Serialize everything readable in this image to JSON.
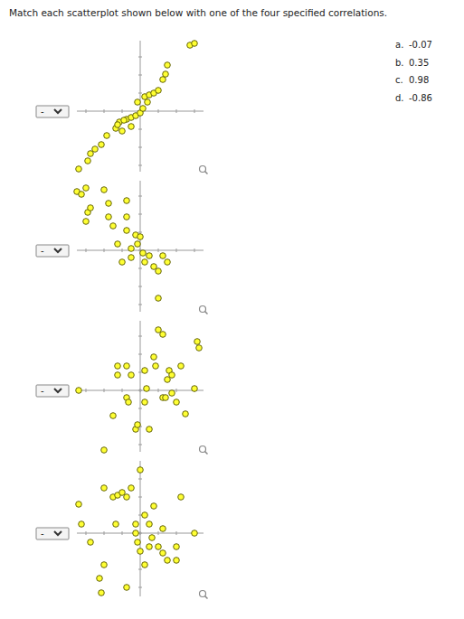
{
  "instruction": "Match each scatterplot shown below with one of the four specified correlations.",
  "select_placeholder": "-",
  "options": [
    {
      "letter": "a.",
      "value": -0.07
    },
    {
      "letter": "b.",
      "value": 0.35
    },
    {
      "letter": "c.",
      "value": 0.98
    },
    {
      "letter": "d.",
      "value": -0.86
    }
  ],
  "chart_data": [
    {
      "type": "scatter",
      "color": "#ffff33",
      "marker": "circle",
      "tick_labels": false,
      "grid": false,
      "xlim": [
        -70,
        70
      ],
      "ylim": [
        -67,
        78
      ],
      "xticks": [
        -60,
        -40,
        -20,
        0,
        20,
        40,
        60
      ],
      "yticks": [
        -60,
        -40,
        -20,
        0,
        20,
        40,
        60
      ],
      "x": [
        -68,
        -58,
        -55,
        -50,
        -43,
        -37,
        -27,
        -23,
        -20,
        -15,
        -10,
        -5,
        0,
        3,
        -3,
        5,
        10,
        15,
        20,
        25,
        28,
        30,
        55,
        60,
        -10,
        -25,
        -18,
        8
      ],
      "values": [
        -64,
        -55,
        -47,
        -42,
        -37,
        -27,
        -19,
        -12,
        -22,
        -9,
        -7,
        -5,
        -2,
        3,
        10,
        16,
        18,
        20,
        23,
        35,
        41,
        51,
        73,
        75,
        -17,
        -15,
        -10,
        10
      ]
    },
    {
      "type": "scatter",
      "color": "#ffff33",
      "marker": "circle",
      "tick_labels": false,
      "grid": false,
      "xlim": [
        -70,
        70
      ],
      "ylim": [
        -68,
        77
      ],
      "xticks": [
        -60,
        -40,
        -20,
        0,
        20,
        40,
        60
      ],
      "yticks": [
        -60,
        -40,
        -20,
        0,
        20,
        40,
        60
      ],
      "x": [
        -70,
        -65,
        -60,
        -58,
        -55,
        -60,
        -40,
        -35,
        -35,
        -30,
        -15,
        -15,
        -15,
        -25,
        -20,
        -10,
        -5,
        0,
        -3,
        3,
        5,
        10,
        15,
        20,
        25,
        30,
        20,
        -10
      ],
      "values": [
        65,
        62,
        69,
        42,
        47,
        32,
        67,
        52,
        37,
        27,
        55,
        37,
        22,
        7,
        -13,
        -8,
        17,
        15,
        7,
        -3,
        -13,
        -6,
        -18,
        -23,
        -6,
        -13,
        -53,
        2
      ]
    },
    {
      "type": "scatter",
      "color": "#ffff33",
      "marker": "circle",
      "tick_labels": false,
      "grid": false,
      "xlim": [
        -70,
        70
      ],
      "ylim": [
        -68,
        77
      ],
      "xticks": [
        -60,
        -40,
        -20,
        0,
        20,
        40,
        60
      ],
      "yticks": [
        -60,
        -40,
        -20,
        0,
        20,
        40,
        60
      ],
      "x": [
        -68,
        -40,
        -30,
        -25,
        -25,
        -15,
        -15,
        -13,
        -10,
        -5,
        -3,
        5,
        5,
        10,
        15,
        17,
        20,
        25,
        25,
        30,
        32,
        35,
        40,
        35,
        45,
        50,
        60,
        63,
        65,
        28,
        7
      ],
      "values": [
        0,
        -66,
        -28,
        27,
        17,
        27,
        -8,
        -13,
        17,
        -43,
        -38,
        22,
        -13,
        -43,
        37,
        27,
        67,
        62,
        -8,
        12,
        22,
        17,
        -13,
        -3,
        27,
        -26,
        2,
        54,
        47,
        -8,
        2
      ]
    },
    {
      "type": "scatter",
      "color": "#ffff33",
      "marker": "circle",
      "tick_labels": false,
      "grid": false,
      "xlim": [
        -70,
        70
      ],
      "ylim": [
        -70,
        80
      ],
      "xticks": [
        -60,
        -40,
        -20,
        0,
        20,
        40,
        60
      ],
      "yticks": [
        -60,
        -40,
        -20,
        0,
        20,
        40,
        60
      ],
      "x": [
        -68,
        -65,
        -55,
        -45,
        -43,
        -40,
        -40,
        -30,
        -27,
        -25,
        -20,
        -15,
        -10,
        -15,
        -5,
        -5,
        -3,
        0,
        0,
        5,
        5,
        10,
        13,
        10,
        15,
        20,
        25,
        25,
        30,
        40,
        40,
        45,
        60
      ],
      "values": [
        32,
        10,
        -10,
        -50,
        -66,
        -35,
        50,
        40,
        10,
        42,
        45,
        40,
        50,
        -60,
        10,
        0,
        -10,
        70,
        -20,
        20,
        -35,
        10,
        -5,
        -15,
        30,
        -15,
        5,
        -22,
        -30,
        -15,
        -30,
        40,
        0
      ]
    }
  ]
}
